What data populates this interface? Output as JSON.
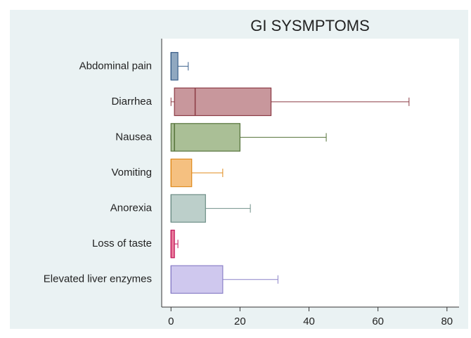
{
  "chart_data": {
    "type": "box",
    "title": "GI SYSMPTOMS",
    "categories": [
      "Abdominal pain",
      "Diarrhea",
      "Nausea",
      "Vomiting",
      "Anorexia",
      "Loss of taste",
      "Elevated liver enzymes"
    ],
    "boxes": [
      {
        "min": 0,
        "q1": 0,
        "median": 0,
        "q3": 2,
        "max": 5
      },
      {
        "min": 0,
        "q1": 1,
        "median": 7,
        "q3": 29,
        "max": 69
      },
      {
        "min": 0,
        "q1": 0,
        "median": 1,
        "q3": 20,
        "max": 45
      },
      {
        "min": 0,
        "q1": 0,
        "median": 0,
        "q3": 6,
        "max": 15
      },
      {
        "min": 0,
        "q1": 0,
        "median": 0,
        "q3": 10,
        "max": 23
      },
      {
        "min": 0,
        "q1": 0,
        "median": 0,
        "q3": 1,
        "max": 2
      },
      {
        "min": 0,
        "q1": 0,
        "median": 0,
        "q3": 15,
        "max": 31
      }
    ],
    "colors": [
      "#90a8c0",
      "#c8979c",
      "#aabf96",
      "#f5c080",
      "#bccfca",
      "#e87a9a",
      "#cfc8ee"
    ],
    "edge_colors": [
      "#3a5f8a",
      "#8b3a43",
      "#55733a",
      "#e08b1e",
      "#6f8f88",
      "#c2185b",
      "#8c82c8"
    ],
    "xlim": [
      -2.7,
      83.5
    ],
    "xticks": [
      0,
      20,
      40,
      60,
      80
    ]
  }
}
